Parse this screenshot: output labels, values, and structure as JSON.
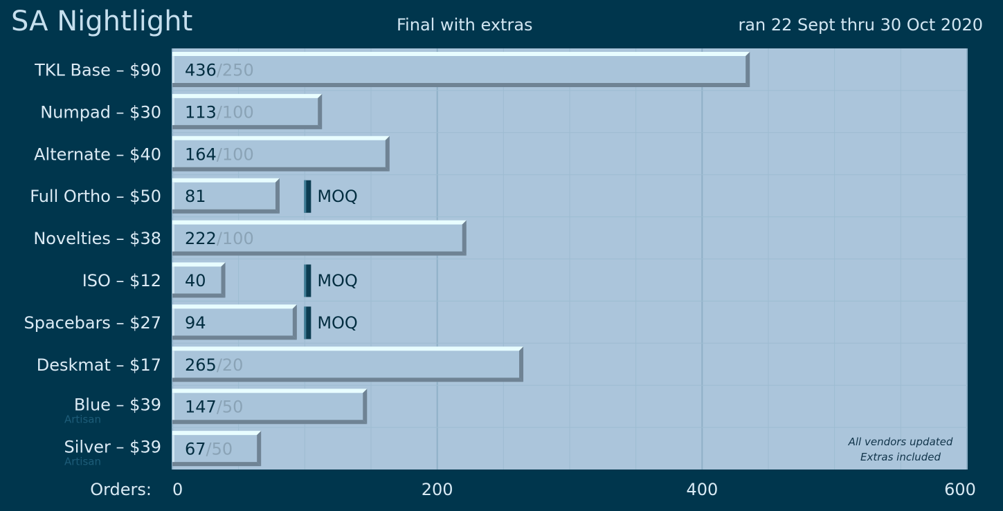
{
  "header": {
    "title": "SA Nightlight",
    "subtitle": "Final with extras",
    "date_range": "ran 22 Sept thru 30 Oct 2020"
  },
  "colors": {
    "background": "#00364d",
    "plot_background": "#abc5db",
    "bar_face": "#a9c4da",
    "bar_highlight": "#e8fdff",
    "bar_shadow": "#6f8394",
    "moq_marker": "#0d3d52"
  },
  "chart_data": {
    "type": "bar",
    "orientation": "horizontal",
    "xlabel": "Orders:",
    "xlim": [
      0,
      600
    ],
    "xticks": [
      0,
      200,
      400,
      600
    ],
    "grid": true,
    "categories": [
      "TKL Base – $90",
      "Numpad – $30",
      "Alternate – $40",
      "Full Ortho – $50",
      "Novelties – $38",
      "ISO – $12",
      "Spacebars – $27",
      "Deskmat – $17",
      "Blue – $39",
      "Silver – $39"
    ],
    "category_sublabels": [
      "",
      "",
      "",
      "",
      "",
      "",
      "",
      "",
      "Artisan",
      "Artisan"
    ],
    "values": [
      436,
      113,
      164,
      81,
      222,
      40,
      94,
      265,
      147,
      67
    ],
    "moq": [
      250,
      100,
      100,
      100,
      100,
      100,
      100,
      20,
      50,
      50
    ],
    "moq_text": [
      "/250",
      "/100",
      "/100",
      "",
      "/100",
      "",
      "",
      "/20",
      "/50",
      "/50"
    ],
    "moq_marker_label": "MOQ",
    "annotations": [
      "All vendors updated",
      "Extras included"
    ]
  }
}
